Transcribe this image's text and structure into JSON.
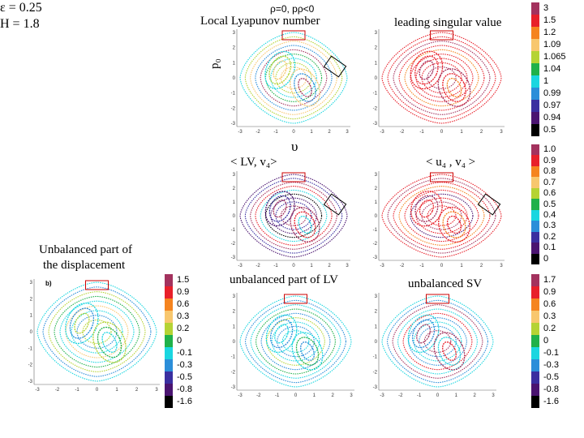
{
  "header": {
    "params_epsilon": "ε = 0.25",
    "params_H": "H = 1.8",
    "top_condition": "ρ=0, pρ<0",
    "col1_title": "Local Lyapunov number",
    "col2_title": "leading singular value",
    "ylabel_p0": "p₀",
    "upsilon": "υ"
  },
  "row2": {
    "left_title": "< LV, v₄>",
    "right_title": "< u₄ , v₄ >",
    "bottom_left_title_1": "Unbalanced part of",
    "bottom_left_title_2": "the displacement",
    "bottom_left_panel_tag": "b)",
    "bottom_mid_title": "unbalanced part of LV",
    "bottom_right_title": "unbalanced SV"
  },
  "axis_ticks": {
    "x": [
      "-3",
      "-2",
      "-1",
      "0",
      "1",
      "2",
      "3"
    ],
    "y": [
      "3",
      "2",
      "1",
      "0",
      "-1",
      "-2",
      "-3"
    ]
  },
  "colorbars": {
    "top": {
      "colors": [
        "#a3325e",
        "#e8202a",
        "#f5841f",
        "#f8c76e",
        "#b5d334",
        "#1fb14a",
        "#1ad6e0",
        "#2b8ed9",
        "#3a2fa0",
        "#4a1470",
        "#000000"
      ],
      "labels": [
        "3",
        "1.5",
        "1.2",
        "1.09",
        "1.065",
        "1.04",
        "1",
        "0.99",
        "0.97",
        "0.94",
        "0.5"
      ]
    },
    "middle": {
      "colors": [
        "#a3325e",
        "#e8202a",
        "#f5841f",
        "#f8c76e",
        "#b5d334",
        "#1fb14a",
        "#1ad6e0",
        "#2b8ed9",
        "#3a2fa0",
        "#4a1470",
        "#000000"
      ],
      "labels": [
        "1.0",
        "0.9",
        "0.8",
        "0.7",
        "0.6",
        "0.5",
        "0.4",
        "0.3",
        "0.2",
        "0.1",
        "0"
      ]
    },
    "bottom_left": {
      "colors": [
        "#a3325e",
        "#e8202a",
        "#f5841f",
        "#f8c76e",
        "#b5d334",
        "#1fb14a",
        "#1ad6e0",
        "#2b8ed9",
        "#3a2fa0",
        "#4a1470",
        "#000000"
      ],
      "labels": [
        "1.5",
        "0.9",
        "0.6",
        "0.3",
        "0.2",
        "0",
        "-0.1",
        "-0.3",
        "-0.5",
        "-0.8",
        "-1.6"
      ]
    },
    "bottom_right": {
      "colors": [
        "#a3325e",
        "#e8202a",
        "#f5841f",
        "#f8c76e",
        "#b5d334",
        "#1fb14a",
        "#1ad6e0",
        "#2b8ed9",
        "#3a2fa0",
        "#4a1470",
        "#000000"
      ],
      "labels": [
        "1.7",
        "0.9",
        "0.6",
        "0.3",
        "0.2",
        "0",
        "-0.1",
        "-0.3",
        "-0.5",
        "-0.8",
        "-1.6"
      ]
    }
  },
  "panels": [
    {
      "id": "lyapunov",
      "palette": [
        "#1ad6e0",
        "#b5d334",
        "#f8c76e",
        "#2b8ed9",
        "#a3325e",
        "#1fb14a"
      ]
    },
    {
      "id": "leading-sv",
      "palette": [
        "#e8202a",
        "#e8202a",
        "#a3325e",
        "#e8202a",
        "#f5841f",
        "#e8202a"
      ]
    },
    {
      "id": "lv-v4",
      "palette": [
        "#4a1470",
        "#3a2fa0",
        "#a3325e",
        "#e8202a",
        "#1ad6e0",
        "#000000"
      ]
    },
    {
      "id": "u4-v4",
      "palette": [
        "#e8202a",
        "#a3325e",
        "#e8202a",
        "#f5841f",
        "#e8202a",
        "#4a1470"
      ]
    },
    {
      "id": "unbalanced-displacement",
      "palette": [
        "#1ad6e0",
        "#2b8ed9",
        "#b5d334",
        "#1fb14a",
        "#1ad6e0",
        "#f8c76e"
      ]
    },
    {
      "id": "unbalanced-lv",
      "palette": [
        "#1ad6e0",
        "#2b8ed9",
        "#1ad6e0",
        "#1fb14a",
        "#2b8ed9",
        "#b5d334"
      ]
    },
    {
      "id": "unbalanced-sv",
      "palette": [
        "#1ad6e0",
        "#2b8ed9",
        "#a3325e",
        "#1ad6e0",
        "#e8202a",
        "#2b8ed9"
      ]
    }
  ]
}
